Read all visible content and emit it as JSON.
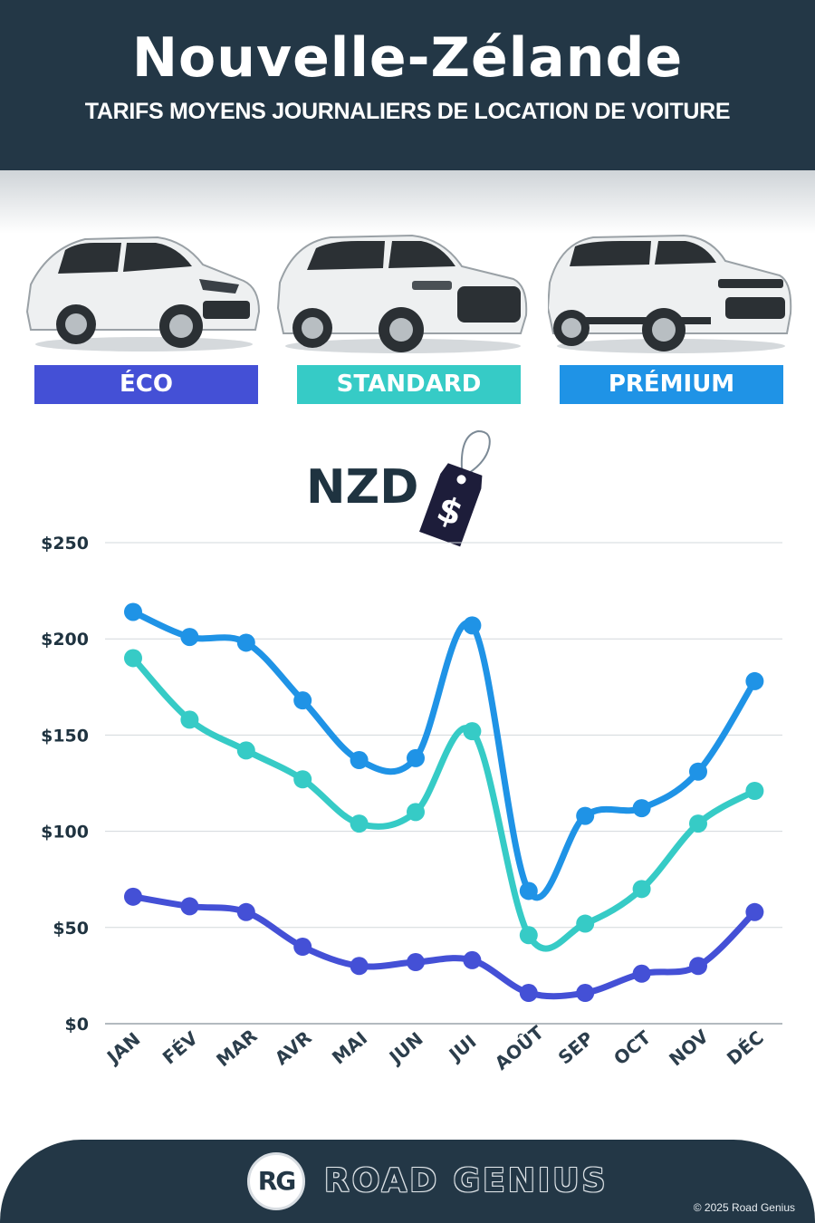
{
  "header": {
    "title": "Nouvelle-Zélande",
    "subtitle": "TARIFS MOYENS JOURNALIERS DE LOCATION DE VOITURE"
  },
  "categories": [
    {
      "label": "ÉCO",
      "color": "#4450d6",
      "icon": "hatchback-car-icon"
    },
    {
      "label": "STANDARD",
      "color": "#36cbc6",
      "icon": "suv-car-icon"
    },
    {
      "label": "PRÉMIUM",
      "color": "#1f93e6",
      "icon": "luxury-suv-car-icon"
    }
  ],
  "currency": {
    "label": "NZD",
    "tag_symbol": "$",
    "icon": "price-tag-icon"
  },
  "chart_data": {
    "type": "line",
    "categories": [
      "JAN",
      "FÉV",
      "MAR",
      "AVR",
      "MAI",
      "JUN",
      "JUI",
      "AOÛT",
      "SEP",
      "OCT",
      "NOV",
      "DÉC"
    ],
    "series": [
      {
        "name": "PRÉMIUM",
        "color": "#1f93e6",
        "values": [
          214,
          201,
          198,
          168,
          137,
          138,
          207,
          69,
          108,
          112,
          131,
          178
        ]
      },
      {
        "name": "STANDARD",
        "color": "#36cbc6",
        "values": [
          190,
          158,
          142,
          127,
          104,
          110,
          152,
          46,
          52,
          70,
          104,
          121
        ]
      },
      {
        "name": "ÉCO",
        "color": "#4450d6",
        "values": [
          66,
          61,
          58,
          40,
          30,
          32,
          33,
          16,
          16,
          26,
          30,
          58
        ]
      }
    ],
    "yticks": [
      "$0",
      "$50",
      "$100",
      "$150",
      "$200",
      "$250"
    ],
    "ylim": [
      0,
      250
    ],
    "grid": true
  },
  "footer": {
    "logo_text": "RG",
    "brand": "ROAD GENIUS",
    "copyright": "© 2025 Road Genius"
  }
}
